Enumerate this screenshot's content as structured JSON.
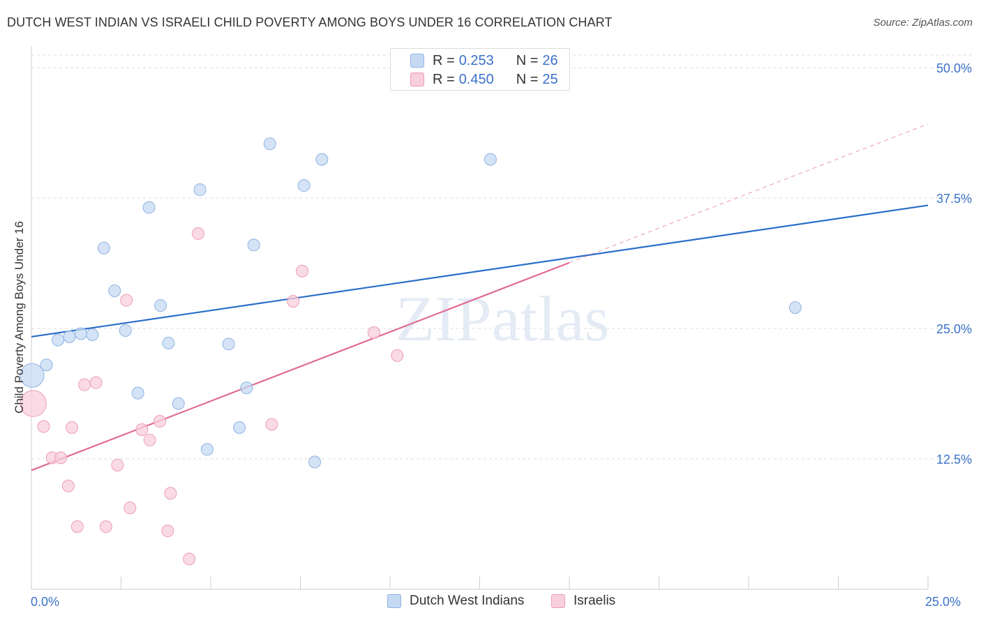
{
  "header": {
    "title": "DUTCH WEST INDIAN VS ISRAELI CHILD POVERTY AMONG BOYS UNDER 16 CORRELATION CHART",
    "source": "Source: ZipAtlas.com"
  },
  "watermark": "ZIPatlas",
  "legend": {
    "rows": [
      {
        "r_label": "R =",
        "r_value": "0.253",
        "n_label": "N =",
        "n_value": "26"
      },
      {
        "r_label": "R =",
        "r_value": "0.450",
        "n_label": "N =",
        "n_value": "25"
      }
    ]
  },
  "colors": {
    "blue_fill": "#c5d9f3",
    "blue_stroke": "#8fb3e3",
    "blue_line": "#2a6ec9",
    "pink_fill": "#f8cfdc",
    "pink_stroke": "#ec9db5",
    "pink_line": "#e06a94",
    "grid": "#dddddd",
    "tick_label": "#3a72c8"
  },
  "chart_data": {
    "type": "scatter",
    "ylabel": "Child Poverty Among Boys Under 16",
    "xlim": [
      0,
      25
    ],
    "ylim": [
      0,
      50
    ],
    "y_ticks": [
      12.5,
      25.0,
      37.5,
      50.0
    ],
    "y_tick_labels": [
      "12.5%",
      "25.0%",
      "37.5%",
      "50.0%"
    ],
    "x_tick_labels": [
      "0.0%",
      "25.0%"
    ],
    "grid": true,
    "series": [
      {
        "name": "Dutch West Indians",
        "color": "#c5d9f3",
        "points": [
          [
            0.02,
            20.5,
            2.0
          ],
          [
            0.42,
            21.5,
            1.0
          ],
          [
            0.74,
            23.9,
            1.0
          ],
          [
            1.06,
            24.2,
            1.0
          ],
          [
            1.38,
            24.5,
            1.0
          ],
          [
            1.7,
            24.4,
            1.0
          ],
          [
            2.02,
            32.7,
            1.0
          ],
          [
            2.32,
            28.6,
            1.0
          ],
          [
            2.62,
            24.8,
            1.0
          ],
          [
            2.97,
            18.8,
            1.0
          ],
          [
            3.28,
            36.6,
            1.0
          ],
          [
            3.6,
            27.2,
            1.0
          ],
          [
            3.82,
            23.6,
            1.0
          ],
          [
            4.1,
            17.8,
            1.0
          ],
          [
            4.7,
            38.3,
            1.0
          ],
          [
            4.9,
            13.4,
            1.0
          ],
          [
            5.5,
            23.5,
            1.0
          ],
          [
            5.8,
            15.5,
            1.0
          ],
          [
            6.0,
            19.3,
            1.0
          ],
          [
            6.2,
            33.0,
            1.0
          ],
          [
            6.65,
            42.7,
            1.0
          ],
          [
            7.6,
            38.7,
            1.0
          ],
          [
            7.9,
            12.2,
            1.0
          ],
          [
            8.1,
            41.2,
            1.0
          ],
          [
            12.8,
            41.2,
            1.0
          ],
          [
            21.3,
            27.0,
            1.0
          ]
        ]
      },
      {
        "name": "Israelis",
        "color": "#f8cfdc",
        "points": [
          [
            0.05,
            17.8,
            2.2
          ],
          [
            0.34,
            15.6,
            1.0
          ],
          [
            0.58,
            12.6,
            1.0
          ],
          [
            0.82,
            12.6,
            1.0
          ],
          [
            1.03,
            9.9,
            1.0
          ],
          [
            1.13,
            15.5,
            1.0
          ],
          [
            1.28,
            6.0,
            1.0
          ],
          [
            1.48,
            19.6,
            1.0
          ],
          [
            1.8,
            19.8,
            1.0
          ],
          [
            2.08,
            6.0,
            1.0
          ],
          [
            2.4,
            11.9,
            1.0
          ],
          [
            2.65,
            27.7,
            1.0
          ],
          [
            2.75,
            7.8,
            1.0
          ],
          [
            3.08,
            15.3,
            1.0
          ],
          [
            3.3,
            14.3,
            1.0
          ],
          [
            3.58,
            16.1,
            1.0
          ],
          [
            3.8,
            5.6,
            1.0
          ],
          [
            3.88,
            9.2,
            1.0
          ],
          [
            4.4,
            2.9,
            1.0
          ],
          [
            4.65,
            34.1,
            1.0
          ],
          [
            6.7,
            15.8,
            1.0
          ],
          [
            7.3,
            27.6,
            1.0
          ],
          [
            7.55,
            30.5,
            1.0
          ],
          [
            9.55,
            24.6,
            1.0
          ],
          [
            10.2,
            22.4,
            1.0
          ]
        ]
      }
    ],
    "trendlines": [
      {
        "series": "Dutch West Indians",
        "x0": 0,
        "y0": 24.2,
        "x1": 25,
        "y1": 36.8,
        "style": "solid"
      },
      {
        "series": "Israelis",
        "x0": 0,
        "y0": 11.4,
        "x1": 15.0,
        "y1": 31.3,
        "style": "solid"
      },
      {
        "series": "Israelis",
        "x0": 15.0,
        "y0": 31.3,
        "x1": 25,
        "y1": 44.6,
        "style": "dashed"
      }
    ]
  }
}
